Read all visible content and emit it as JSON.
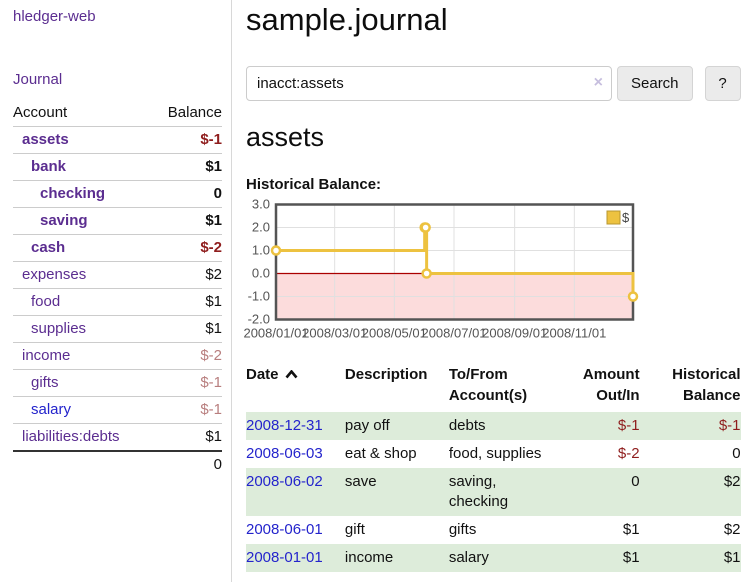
{
  "sidebar": {
    "app_title": "hledger-web",
    "nav": [
      {
        "label": "Journal"
      }
    ],
    "accounts_table": {
      "headers": {
        "account": "Account",
        "balance": "Balance"
      },
      "rows": [
        {
          "account": "assets",
          "balance": "$-1",
          "depth": 1,
          "bold": true,
          "balance_color": "negative-strong"
        },
        {
          "account": "bank",
          "balance": "$1",
          "depth": 2,
          "bold": true,
          "balance_color": "normal"
        },
        {
          "account": "checking",
          "balance": "0",
          "depth": 3,
          "bold": true,
          "balance_color": "normal"
        },
        {
          "account": "saving",
          "balance": "$1",
          "depth": 3,
          "bold": true,
          "balance_color": "normal"
        },
        {
          "account": "cash",
          "balance": "$-2",
          "depth": 2,
          "bold": true,
          "balance_color": "negative-strong"
        },
        {
          "account": "expenses",
          "balance": "$2",
          "depth": 1,
          "bold": false,
          "balance_color": "normal"
        },
        {
          "account": "food",
          "balance": "$1",
          "depth": 2,
          "bold": false,
          "balance_color": "normal"
        },
        {
          "account": "supplies",
          "balance": "$1",
          "depth": 2,
          "bold": false,
          "balance_color": "normal"
        },
        {
          "account": "income",
          "balance": "$-2",
          "depth": 1,
          "bold": false,
          "balance_color": "negative-muted"
        },
        {
          "account": "gifts",
          "balance": "$-1",
          "depth": 2,
          "bold": false,
          "balance_color": "negative-muted"
        },
        {
          "account": "salary",
          "balance": "$-1",
          "depth": 2,
          "bold": false,
          "balance_color": "negative-muted",
          "link_color": "blue"
        },
        {
          "account": "liabilities:debts",
          "balance": "$1",
          "depth": 1,
          "bold": false,
          "balance_color": "normal"
        }
      ],
      "total": "0"
    }
  },
  "header": {
    "title": "sample.journal"
  },
  "search": {
    "value": "inacct:assets",
    "clear_icon": "×",
    "button_label": "Search",
    "help_label": "?"
  },
  "account_page": {
    "title": "assets",
    "chart_label": "Historical Balance:"
  },
  "chart_data": {
    "type": "line",
    "style": "steps",
    "title": "Historical Balance:",
    "x_range": [
      "2008-01-01",
      "2008-12-31"
    ],
    "ylim": [
      -2,
      3
    ],
    "y_ticks": [
      "3.0",
      "2.0",
      "1.0",
      "0.0",
      "-1.0",
      "-2.0"
    ],
    "x_ticks": [
      "2008/01/01",
      "2008/03/01",
      "2008/05/01",
      "2008/07/01",
      "2008/09/01",
      "2008/11/01"
    ],
    "series": [
      {
        "name": "$",
        "color": "#edc240",
        "x": [
          "2008-01-01",
          "2008-06-01",
          "2008-06-02",
          "2008-06-03",
          "2008-12-31"
        ],
        "values": [
          1,
          2,
          2,
          0,
          -1
        ]
      }
    ],
    "legend_position": "top-right",
    "grid": true,
    "negative_region_color": "#fcdcdc",
    "zero_line_color": "#aa0000",
    "grid_color": "#e0e0e0",
    "border_color": "#545454",
    "tick_color": "#545454"
  },
  "register_table": {
    "headers": [
      {
        "lines": [
          "Date"
        ],
        "sorted": "ascending",
        "align": "left"
      },
      {
        "lines": [
          "Description"
        ],
        "align": "left"
      },
      {
        "lines": [
          "To/From",
          "Account(s)"
        ],
        "align": "left"
      },
      {
        "lines": [
          "Amount",
          "Out/In"
        ],
        "align": "right"
      },
      {
        "lines": [
          "Historical",
          "Balance"
        ],
        "align": "right"
      }
    ],
    "rows": [
      {
        "date": "2008-12-31",
        "description": "pay off",
        "accounts": "debts",
        "amount": "$-1",
        "balance": "$-1",
        "amount_negative": true,
        "balance_negative": true
      },
      {
        "date": "2008-06-03",
        "description": "eat & shop",
        "accounts": "food, supplies",
        "amount": "$-2",
        "balance": "0",
        "amount_negative": true,
        "balance_negative": false
      },
      {
        "date": "2008-06-02",
        "description": "save",
        "accounts": "saving, checking",
        "amount": "0",
        "balance": "$2",
        "amount_negative": false,
        "balance_negative": false
      },
      {
        "date": "2008-06-01",
        "description": "gift",
        "accounts": "gifts",
        "amount": "$1",
        "balance": "$2",
        "amount_negative": false,
        "balance_negative": false
      },
      {
        "date": "2008-01-01",
        "description": "income",
        "accounts": "salary",
        "amount": "$1",
        "balance": "$1",
        "amount_negative": false,
        "balance_negative": false
      }
    ]
  },
  "colors": {
    "link_purple": "#5b2d90",
    "link_blue": "#2424cc",
    "negative_strong": "#8f1d1d",
    "negative_muted": "#b87e7e",
    "row_stripe_green": "#ddecda",
    "series_yellow": "#edc240"
  }
}
